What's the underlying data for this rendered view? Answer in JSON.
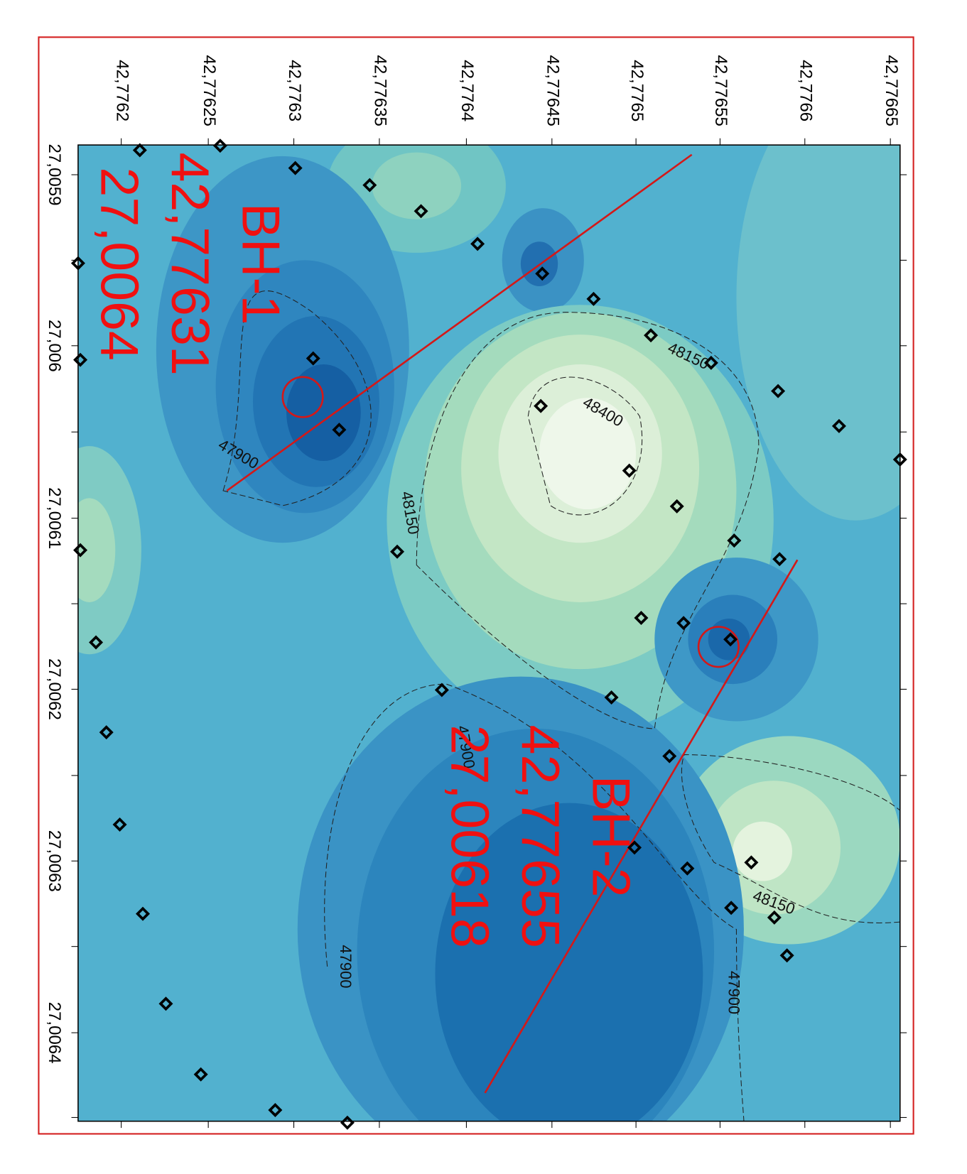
{
  "map": {
    "top_axis_labels": [
      "42,7762",
      "42,77625",
      "42,7763",
      "42,77635",
      "42,7764",
      "42,77645",
      "42,7765",
      "42,77655",
      "42,7766",
      "42,77665"
    ],
    "left_axis_labels": [
      "27,0059",
      "27,006",
      "27,0061",
      "27,0062",
      "27,0063",
      "27,0064"
    ],
    "contour_labels": [
      "48150",
      "48400",
      "47900",
      "48150",
      "47900",
      "48150",
      "47900",
      "47900"
    ],
    "annotations": [
      {
        "label": "BH-1",
        "x": "42,77631",
        "y": "27,0064"
      },
      {
        "label": "BH-2",
        "x": "42,77655",
        "y": "27,00618"
      }
    ]
  }
}
